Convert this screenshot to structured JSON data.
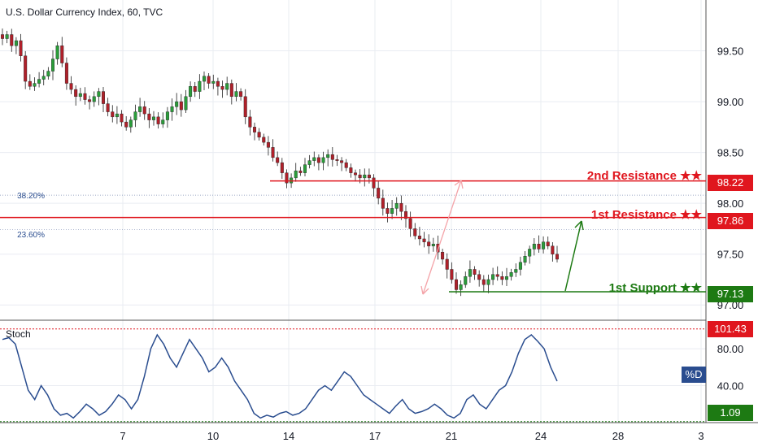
{
  "chart_data": [
    {
      "type": "candlestick",
      "title": "U.S. Dollar Currency Index, 60, TVC",
      "ylim": [
        96.85,
        100.0
      ],
      "y_ticks": [
        "99.50",
        "99.00",
        "98.50",
        "98.00",
        "97.50",
        "97.00"
      ],
      "x_ticks": [
        "7",
        "10",
        "14",
        "17",
        "21",
        "24",
        "28",
        "3"
      ],
      "close_series": [
        99.62,
        99.66,
        99.55,
        99.6,
        99.45,
        99.2,
        99.15,
        99.18,
        99.22,
        99.25,
        99.3,
        99.42,
        99.55,
        99.38,
        99.18,
        99.12,
        99.05,
        99.08,
        99.02,
        99.0,
        99.05,
        99.1,
        98.98,
        98.9,
        98.85,
        98.88,
        98.8,
        98.75,
        98.82,
        98.9,
        98.95,
        98.88,
        98.82,
        98.85,
        98.78,
        98.82,
        98.9,
        98.95,
        99.0,
        98.92,
        99.05,
        99.15,
        99.1,
        99.2,
        99.25,
        99.18,
        99.2,
        99.15,
        99.12,
        99.18,
        99.05,
        99.1,
        99.05,
        98.85,
        98.75,
        98.7,
        98.65,
        98.6,
        98.55,
        98.45,
        98.4,
        98.3,
        98.2,
        98.25,
        98.32,
        98.3,
        98.38,
        98.42,
        98.45,
        98.4,
        98.45,
        98.48,
        98.43,
        98.42,
        98.4,
        98.35,
        98.3,
        98.28,
        98.25,
        98.28,
        98.25,
        98.15,
        98.05,
        97.95,
        97.9,
        97.95,
        98.0,
        97.92,
        97.85,
        97.75,
        97.68,
        97.65,
        97.62,
        97.58,
        97.6,
        97.52,
        97.45,
        97.35,
        97.25,
        97.15,
        97.2,
        97.28,
        97.35,
        97.3,
        97.25,
        97.2,
        97.25,
        97.3,
        97.28,
        97.25,
        97.28,
        97.32,
        97.35,
        97.42,
        97.48,
        97.55,
        97.6,
        97.55,
        97.62,
        97.58,
        97.5,
        97.45
      ],
      "series": [
        {
          "name": "",
          "type": "hline",
          "value": 98.22,
          "label": "2nd Resistance ★★",
          "tag": "98.22",
          "color": "#e0161e"
        },
        {
          "name": "",
          "type": "hline",
          "value": 97.86,
          "label": "1st Resistance ★★",
          "tag": "97.86",
          "color": "#e0161e"
        },
        {
          "name": "",
          "type": "hline",
          "value": 97.13,
          "label": "1st Support ★★",
          "tag": "97.13",
          "color": "#1d7a13"
        }
      ],
      "fib_levels": [
        {
          "label": "38.20%",
          "value": 98.08
        },
        {
          "label": "23.60%",
          "value": 97.74
        }
      ]
    },
    {
      "type": "line",
      "title": "Stoch",
      "ylim": [
        0,
        110
      ],
      "y_ticks": [
        "80.00",
        "40.00"
      ],
      "upper_level": {
        "tag": "101.43",
        "value": 101.43
      },
      "lower_level": {
        "tag": "1.09",
        "value": 1.09
      },
      "badge": "%D",
      "values": [
        90,
        92,
        85,
        60,
        35,
        25,
        40,
        30,
        15,
        8,
        10,
        5,
        12,
        20,
        15,
        8,
        12,
        20,
        30,
        25,
        15,
        25,
        50,
        80,
        95,
        85,
        70,
        60,
        75,
        90,
        80,
        70,
        55,
        60,
        70,
        60,
        45,
        35,
        25,
        10,
        5,
        8,
        6,
        10,
        12,
        8,
        10,
        15,
        25,
        35,
        40,
        35,
        45,
        55,
        50,
        40,
        30,
        25,
        20,
        15,
        10,
        18,
        25,
        15,
        10,
        12,
        15,
        20,
        15,
        8,
        5,
        10,
        25,
        30,
        20,
        15,
        25,
        35,
        40,
        55,
        75,
        90,
        95,
        88,
        80,
        60,
        45
      ]
    }
  ]
}
